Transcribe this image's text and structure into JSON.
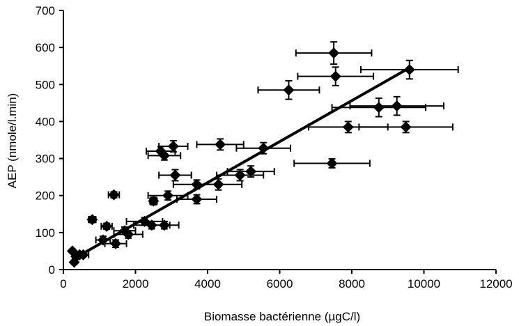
{
  "chart_data": {
    "type": "scatter",
    "title": "",
    "xlabel": "Biomasse bactérienne (µgC/l)",
    "ylabel": "AEP (nmole/l.min)",
    "xlim": [
      0,
      12000
    ],
    "ylim": [
      0,
      700
    ],
    "x_ticks": [
      0,
      2000,
      4000,
      6000,
      8000,
      10000,
      12000
    ],
    "y_ticks": [
      0,
      100,
      200,
      300,
      400,
      500,
      600,
      700
    ],
    "x_tick_labels": [
      "0",
      "2000",
      "4000",
      "6000",
      "8000",
      "10000",
      "12000"
    ],
    "y_tick_labels": [
      "0",
      "100",
      "200",
      "300",
      "400",
      "500",
      "600",
      "700"
    ],
    "grid": false,
    "marker": "diamond",
    "color": "#000000",
    "points": [
      {
        "x": 250,
        "y": 50,
        "xerr": 0,
        "yerr": 5
      },
      {
        "x": 300,
        "y": 20,
        "xerr": 0,
        "yerr": 5
      },
      {
        "x": 350,
        "y": 35,
        "xerr": 100,
        "yerr": 5
      },
      {
        "x": 450,
        "y": 40,
        "xerr": 100,
        "yerr": 5
      },
      {
        "x": 550,
        "y": 40,
        "xerr": 150,
        "yerr": 5
      },
      {
        "x": 800,
        "y": 135,
        "xerr": 100,
        "yerr": 8
      },
      {
        "x": 1100,
        "y": 80,
        "xerr": 200,
        "yerr": 10
      },
      {
        "x": 1200,
        "y": 117,
        "xerr": 150,
        "yerr": 8
      },
      {
        "x": 1400,
        "y": 202,
        "xerr": 150,
        "yerr": 8
      },
      {
        "x": 1450,
        "y": 70,
        "xerr": 300,
        "yerr": 10
      },
      {
        "x": 1700,
        "y": 105,
        "xerr": 300,
        "yerr": 10
      },
      {
        "x": 1800,
        "y": 95,
        "xerr": 400,
        "yerr": 10
      },
      {
        "x": 2250,
        "y": 130,
        "xerr": 500,
        "yerr": 10
      },
      {
        "x": 2450,
        "y": 120,
        "xerr": 500,
        "yerr": 10
      },
      {
        "x": 2500,
        "y": 185,
        "xerr": 100,
        "yerr": 10
      },
      {
        "x": 2700,
        "y": 320,
        "xerr": 400,
        "yerr": 12
      },
      {
        "x": 2800,
        "y": 120,
        "xerr": 400,
        "yerr": 10
      },
      {
        "x": 2800,
        "y": 308,
        "xerr": 450,
        "yerr": 12
      },
      {
        "x": 2900,
        "y": 200,
        "xerr": 550,
        "yerr": 12
      },
      {
        "x": 3050,
        "y": 333,
        "xerr": 400,
        "yerr": 15
      },
      {
        "x": 3100,
        "y": 255,
        "xerr": 450,
        "yerr": 15
      },
      {
        "x": 3700,
        "y": 230,
        "xerr": 650,
        "yerr": 12
      },
      {
        "x": 3700,
        "y": 190,
        "xerr": 550,
        "yerr": 12
      },
      {
        "x": 4300,
        "y": 230,
        "xerr": 650,
        "yerr": 15
      },
      {
        "x": 4350,
        "y": 338,
        "xerr": 650,
        "yerr": 15
      },
      {
        "x": 4900,
        "y": 255,
        "xerr": 650,
        "yerr": 15
      },
      {
        "x": 5200,
        "y": 265,
        "xerr": 650,
        "yerr": 15
      },
      {
        "x": 5550,
        "y": 328,
        "xerr": 750,
        "yerr": 15
      },
      {
        "x": 6250,
        "y": 485,
        "xerr": 850,
        "yerr": 25
      },
      {
        "x": 7450,
        "y": 287,
        "xerr": 1050,
        "yerr": 12
      },
      {
        "x": 7500,
        "y": 585,
        "xerr": 1050,
        "yerr": 30
      },
      {
        "x": 7550,
        "y": 522,
        "xerr": 1050,
        "yerr": 25
      },
      {
        "x": 7900,
        "y": 385,
        "xerr": 1100,
        "yerr": 15
      },
      {
        "x": 8750,
        "y": 438,
        "xerr": 1300,
        "yerr": 25
      },
      {
        "x": 9250,
        "y": 442,
        "xerr": 1300,
        "yerr": 25
      },
      {
        "x": 9500,
        "y": 385,
        "xerr": 1300,
        "yerr": 15
      },
      {
        "x": 9600,
        "y": 540,
        "xerr": 1350,
        "yerr": 25
      }
    ],
    "trendline": {
      "x": [
        300,
        9600
      ],
      "y": [
        30,
        545
      ]
    }
  }
}
